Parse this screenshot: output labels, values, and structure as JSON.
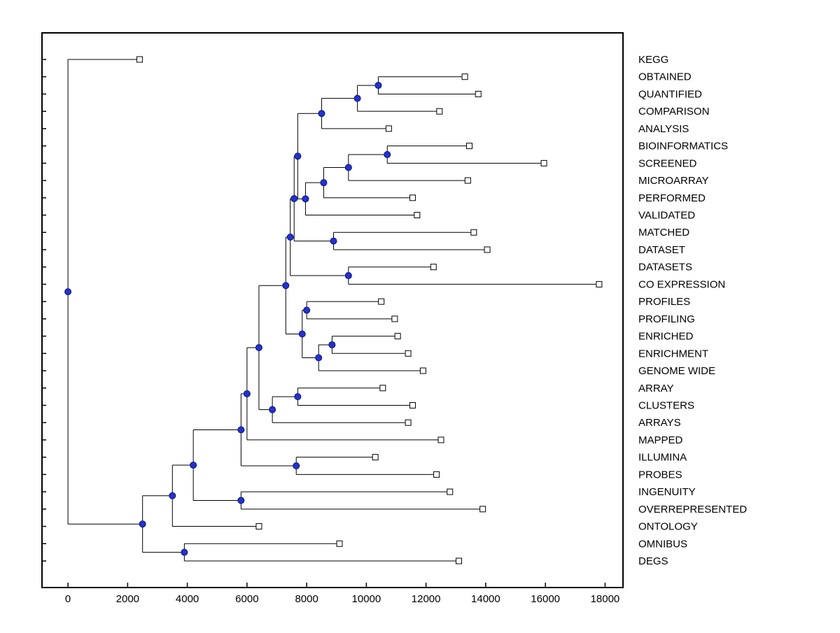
{
  "figure": {
    "background": "#ffffff",
    "box_color": "#000000",
    "branch_color": "#000000",
    "node_marker": {
      "shape": "circle",
      "fill": "#2133d1",
      "stroke": "#10106e",
      "radius": 4.5
    },
    "leaf_marker": {
      "shape": "square",
      "fill": "#ffffff",
      "stroke": "#000000",
      "size": 8
    },
    "tick_font_size": 15,
    "label_font_size": 15
  },
  "chart_data": {
    "type": "dendrogram",
    "orientation": "horizontal-root-left",
    "xlabel": "",
    "ylabel": "",
    "grid": false,
    "legend": "none",
    "x_ticks": [
      0,
      2000,
      4000,
      6000,
      8000,
      10000,
      12000,
      14000,
      16000,
      18000
    ],
    "xlim": [
      -870,
      18600
    ],
    "leaf_labels": [
      "KEGG",
      "OBTAINED",
      "QUANTIFIED",
      "COMPARISON",
      "ANALYSIS",
      "BIOINFORMATICS",
      "SCREENED",
      "MICROARRAY",
      "PERFORMED",
      "VALIDATED",
      "MATCHED",
      "DATASET",
      "DATASETS",
      "CO EXPRESSION",
      "PROFILES",
      "PROFILING",
      "ENRICHED",
      "ENRICHMENT",
      "GENOME WIDE",
      "ARRAY",
      "CLUSTERS",
      "ARRAYS",
      "MAPPED",
      "ILLUMINA",
      "PROBES",
      "INGENUITY",
      "OVERREPRESENTED",
      "ONTOLOGY",
      "OMNIBUS",
      "DEGS"
    ],
    "tree": {
      "v": 0,
      "children": [
        {
          "label": "KEGG",
          "v": 2400
        },
        {
          "v": 2500,
          "children": [
            {
              "v": 3500,
              "children": [
                {
                  "v": 4200,
                  "children": [
                    {
                      "v": 5800,
                      "children": [
                        {
                          "v": 6000,
                          "children": [
                            {
                              "v": 6400,
                              "children": [
                                {
                                  "v": 7300,
                                  "children": [
                                    {
                                      "v": 7450,
                                      "children": [
                                        {
                                          "v": 7580,
                                          "children": [
                                            {
                                              "v": 7700,
                                              "children": [
                                                {
                                                  "v": 8500,
                                                  "children": [
                                                    {
                                                      "v": 9700,
                                                      "children": [
                                                        {
                                                          "v": 10400,
                                                          "children": [
                                                            {
                                                              "label": "OBTAINED",
                                                              "v": 13300
                                                            },
                                                            {
                                                              "label": "QUANTIFIED",
                                                              "v": 13750
                                                            }
                                                          ]
                                                        },
                                                        {
                                                          "label": "COMPARISON",
                                                          "v": 12450
                                                        }
                                                      ]
                                                    },
                                                    {
                                                      "label": "ANALYSIS",
                                                      "v": 10750
                                                    }
                                                  ]
                                                },
                                                {
                                                  "v": 7960,
                                                  "children": [
                                                    {
                                                      "v": 8570,
                                                      "children": [
                                                        {
                                                          "v": 9400,
                                                          "children": [
                                                            {
                                                              "v": 10700,
                                                              "children": [
                                                                {
                                                                  "label": "BIOINFORMATICS",
                                                                  "v": 13450
                                                                },
                                                                {
                                                                  "label": "SCREENED",
                                                                  "v": 15950
                                                                }
                                                              ]
                                                            },
                                                            {
                                                              "label": "MICROARRAY",
                                                              "v": 13400
                                                            }
                                                          ]
                                                        },
                                                        {
                                                          "label": "PERFORMED",
                                                          "v": 11550
                                                        }
                                                      ]
                                                    },
                                                    {
                                                      "label": "VALIDATED",
                                                      "v": 11700
                                                    }
                                                  ]
                                                }
                                              ]
                                            },
                                            {
                                              "v": 8900,
                                              "children": [
                                                {
                                                  "label": "MATCHED",
                                                  "v": 13600
                                                },
                                                {
                                                  "label": "DATASET",
                                                  "v": 14050
                                                }
                                              ]
                                            }
                                          ]
                                        },
                                        {
                                          "v": 9400,
                                          "children": [
                                            {
                                              "label": "DATASETS",
                                              "v": 12250
                                            },
                                            {
                                              "label": "CO EXPRESSION",
                                              "v": 17800
                                            }
                                          ]
                                        }
                                      ]
                                    },
                                    {
                                      "v": 7850,
                                      "children": [
                                        {
                                          "v": 8000,
                                          "children": [
                                            {
                                              "label": "PROFILES",
                                              "v": 10500
                                            },
                                            {
                                              "label": "PROFILING",
                                              "v": 10950
                                            }
                                          ]
                                        },
                                        {
                                          "v": 8400,
                                          "children": [
                                            {
                                              "v": 8850,
                                              "children": [
                                                {
                                                  "label": "ENRICHED",
                                                  "v": 11050
                                                },
                                                {
                                                  "label": "ENRICHMENT",
                                                  "v": 11400
                                                }
                                              ]
                                            },
                                            {
                                              "label": "GENOME WIDE",
                                              "v": 11900
                                            }
                                          ]
                                        }
                                      ]
                                    }
                                  ]
                                },
                                {
                                  "v": 6850,
                                  "children": [
                                    {
                                      "v": 7700,
                                      "children": [
                                        {
                                          "label": "ARRAY",
                                          "v": 10550
                                        },
                                        {
                                          "label": "CLUSTERS",
                                          "v": 11550
                                        }
                                      ]
                                    },
                                    {
                                      "label": "ARRAYS",
                                      "v": 11400
                                    }
                                  ]
                                }
                              ]
                            },
                            {
                              "label": "MAPPED",
                              "v": 12500
                            }
                          ]
                        },
                        {
                          "v": 7650,
                          "children": [
                            {
                              "label": "ILLUMINA",
                              "v": 10300
                            },
                            {
                              "label": "PROBES",
                              "v": 12350
                            }
                          ]
                        }
                      ]
                    },
                    {
                      "v": 5800,
                      "children": [
                        {
                          "label": "INGENUITY",
                          "v": 12800
                        },
                        {
                          "label": "OVERREPRESENTED",
                          "v": 13900
                        }
                      ]
                    }
                  ]
                },
                {
                  "label": "ONTOLOGY",
                  "v": 6400
                }
              ]
            },
            {
              "v": 3900,
              "children": [
                {
                  "label": "OMNIBUS",
                  "v": 9100
                },
                {
                  "label": "DEGS",
                  "v": 13100
                }
              ]
            }
          ]
        }
      ]
    }
  }
}
